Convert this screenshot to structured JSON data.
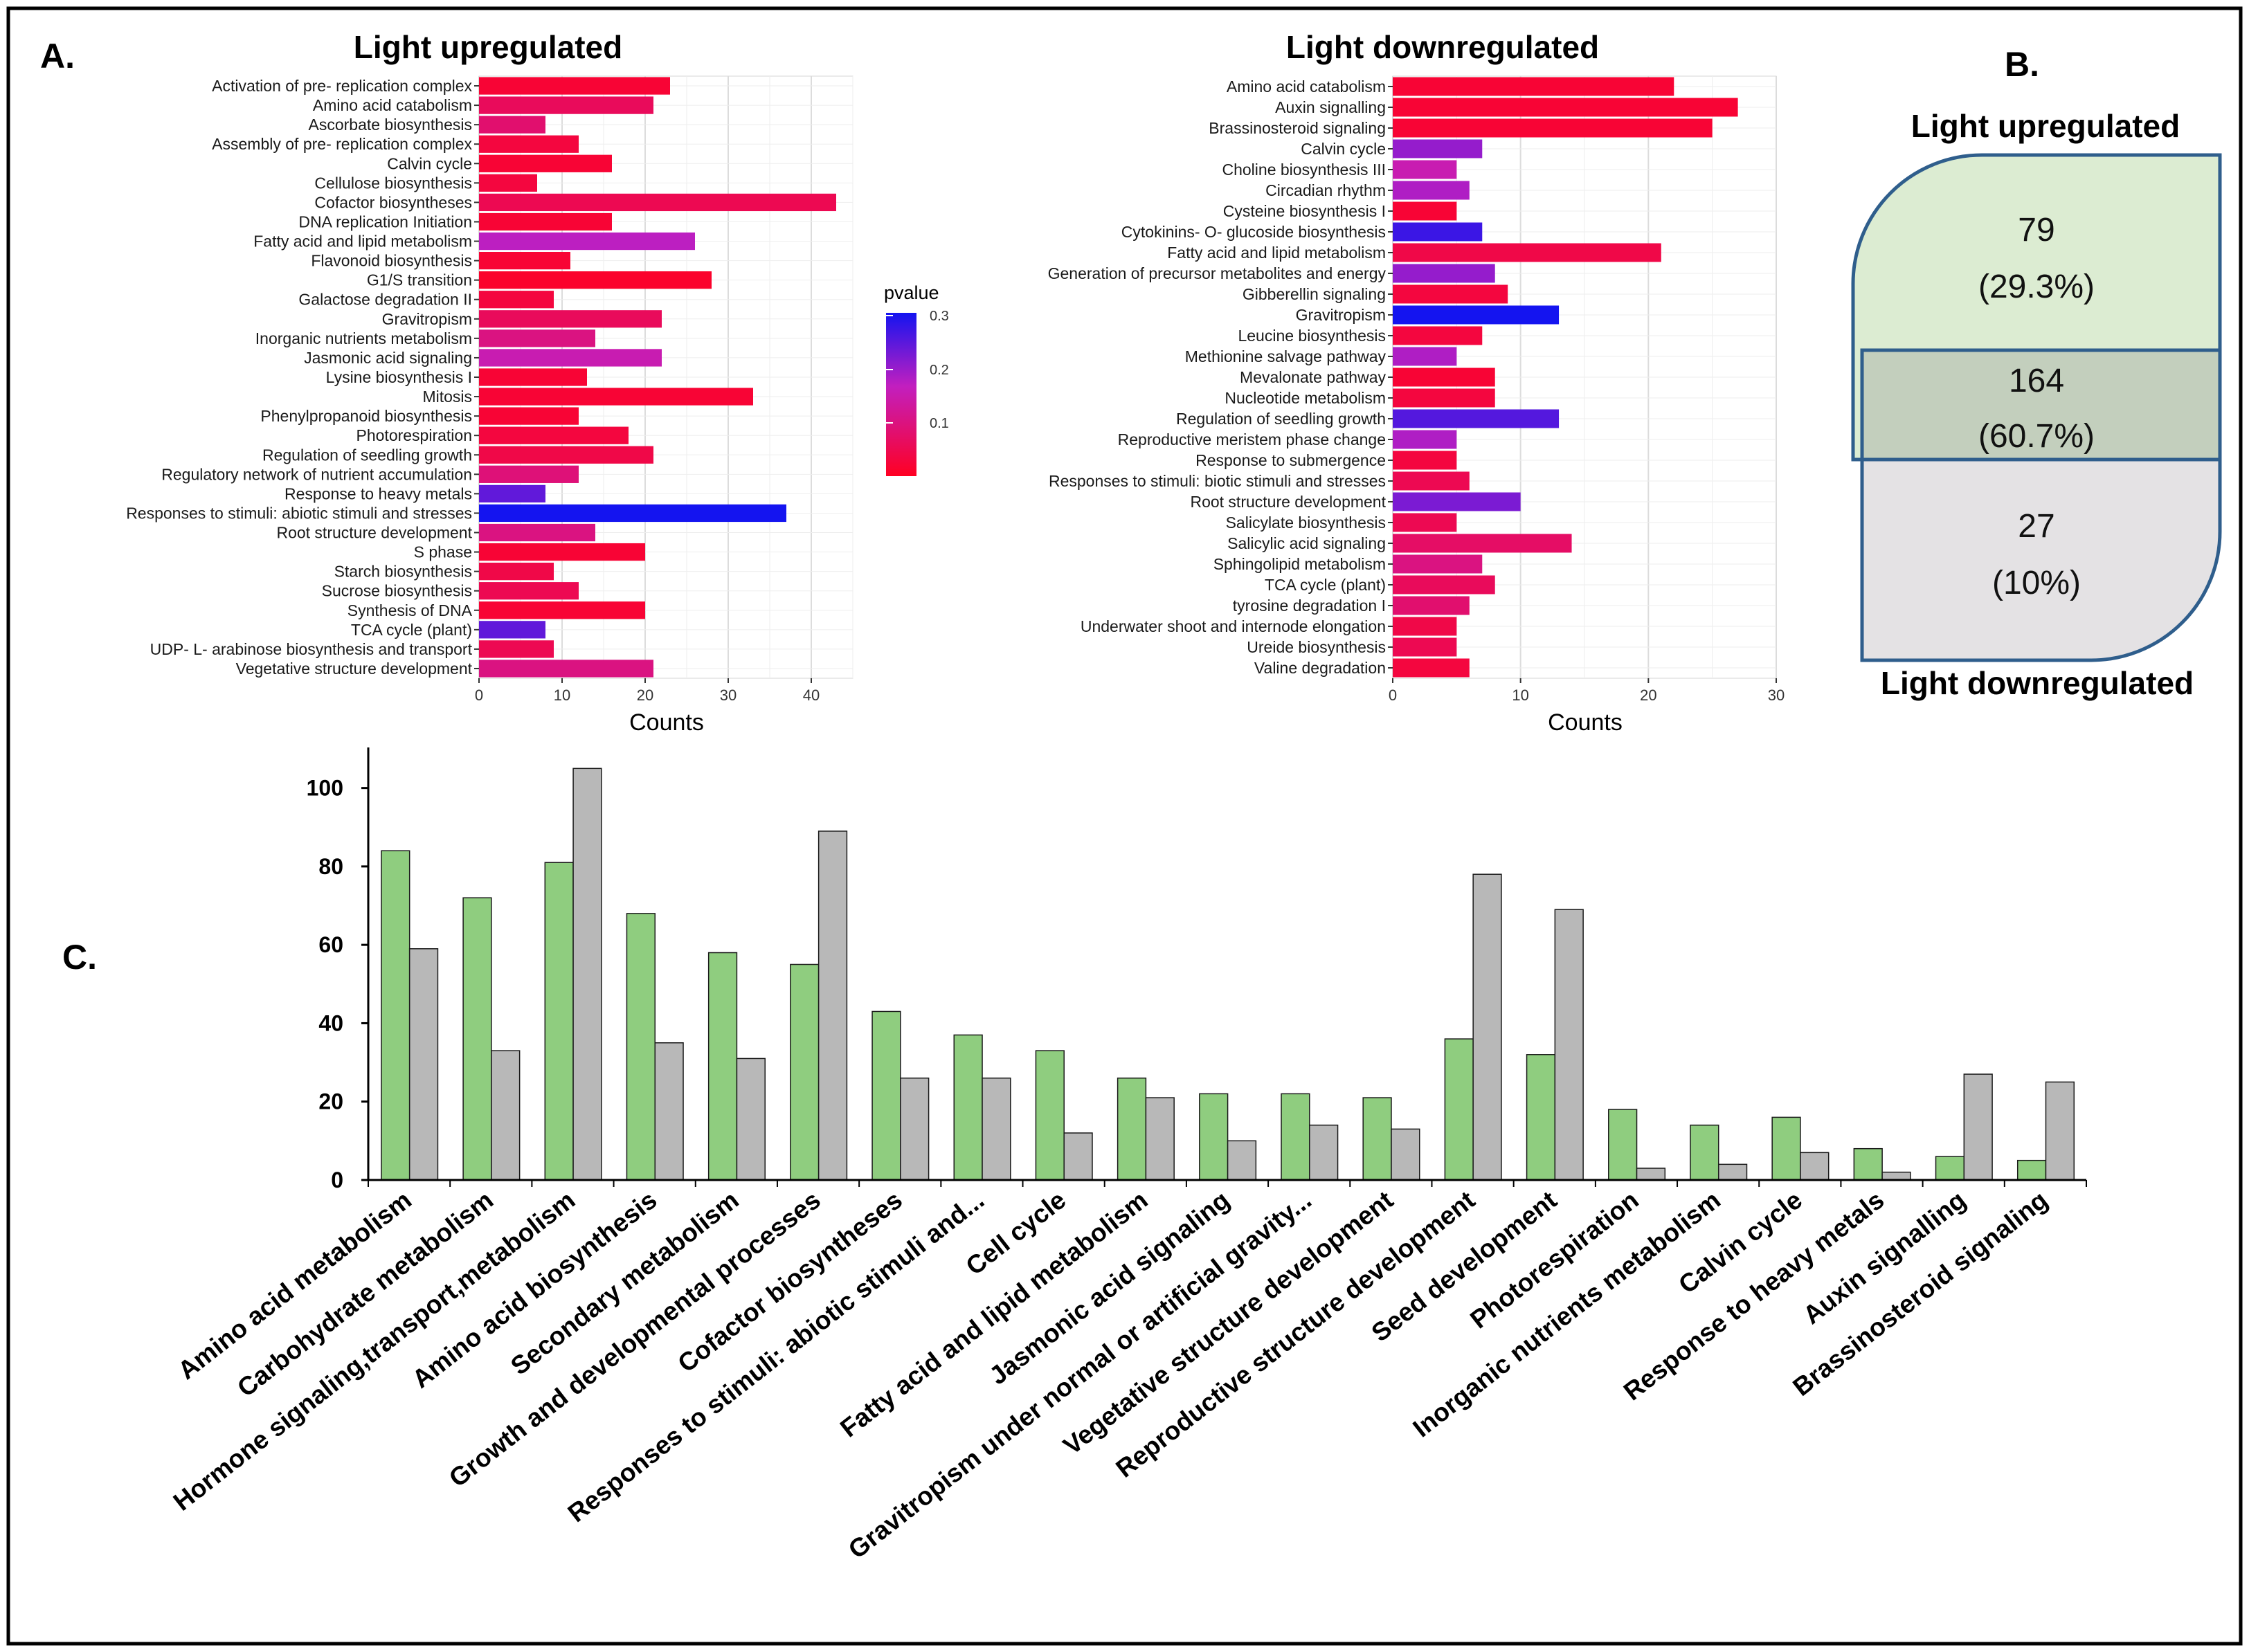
{
  "panels": {
    "a": "A.",
    "b": "B.",
    "c": "C."
  },
  "colors": {
    "low_p": "#ff0022",
    "mid_p": "#c21fbf",
    "high_p": "#1414f0",
    "venn_up": "#dcecd2",
    "venn_down": "#e4e2e4",
    "venn_overlap": "#c3cfbd",
    "venn_stroke": "#2f5e8c",
    "bar_up": "#8fcd7f",
    "bar_down": "#b8b8b8"
  },
  "chart_data": [
    {
      "id": "light-upregulated",
      "type": "bar",
      "orientation": "horizontal",
      "title": "Light upregulated",
      "xlabel": "Counts",
      "xlim": [
        0,
        45
      ],
      "xticks": [
        0,
        10,
        20,
        30,
        40
      ],
      "legend_title": "pvalue",
      "legend_ticks": [
        "0.3",
        "0.2",
        "0.1"
      ],
      "categories": [
        "Activation of pre- replication complex",
        "Amino acid catabolism",
        "Ascorbate biosynthesis",
        "Assembly of pre- replication complex",
        "Calvin cycle",
        "Cellulose biosynthesis",
        "Cofactor biosyntheses",
        "DNA replication Initiation",
        "Fatty acid and lipid metabolism",
        "Flavonoid biosynthesis",
        "G1/S transition",
        "Galactose degradation II",
        "Gravitropism",
        "Inorganic nutrients metabolism",
        "Jasmonic acid signaling",
        "Lysine biosynthesis I",
        "Mitosis",
        "Phenylpropanoid biosynthesis",
        "Photorespiration",
        "Regulation of seedling growth",
        "Regulatory network of nutrient accumulation",
        "Response to heavy metals",
        "Responses to stimuli: abiotic stimuli and stresses",
        "Root structure development",
        "S phase",
        "Starch biosynthesis",
        "Sucrose biosynthesis",
        "Synthesis of DNA",
        "TCA cycle (plant)",
        "UDP- L- arabinose biosynthesis and transport",
        "Vegetative structure development"
      ],
      "values": [
        23,
        21,
        8,
        12,
        16,
        7,
        43,
        16,
        26,
        11,
        28,
        9,
        22,
        14,
        22,
        13,
        33,
        12,
        18,
        21,
        12,
        8,
        37,
        14,
        20,
        9,
        12,
        20,
        8,
        9,
        21
      ],
      "pvalues": [
        0.02,
        0.06,
        0.08,
        0.03,
        0.02,
        0.03,
        0.05,
        0.02,
        0.17,
        0.02,
        0.01,
        0.03,
        0.06,
        0.1,
        0.15,
        0.02,
        0.02,
        0.02,
        0.03,
        0.04,
        0.09,
        0.24,
        0.3,
        0.1,
        0.02,
        0.04,
        0.05,
        0.02,
        0.24,
        0.05,
        0.1
      ]
    },
    {
      "id": "light-downregulated",
      "type": "bar",
      "orientation": "horizontal",
      "title": "Light downregulated",
      "xlabel": "Counts",
      "xlim": [
        0,
        30
      ],
      "xticks": [
        0,
        10,
        20,
        30
      ],
      "categories": [
        "Amino acid catabolism",
        "Auxin signalling",
        "Brassinosteroid signaling",
        "Calvin cycle",
        "Choline biosynthesis III",
        "Circadian rhythm",
        "Cysteine biosynthesis I",
        "Cytokinins- O- glucoside biosynthesis",
        "Fatty acid and lipid metabolism",
        "Generation of precursor metabolites and energy",
        "Gibberellin signaling",
        "Gravitropism",
        "Leucine biosynthesis",
        "Methionine salvage pathway",
        "Mevalonate pathway",
        "Nucleotide metabolism",
        "Regulation of seedling growth",
        "Reproductive meristem phase change",
        "Response to submergence",
        "Responses to stimuli: biotic stimuli and stresses",
        "Root structure development",
        "Salicylate biosynthesis",
        "Salicylic acid signaling",
        "Sphingolipid metabolism",
        "TCA cycle (plant)",
        "tyrosine degradation I",
        "Underwater shoot and internode elongation",
        "Ureide biosynthesis",
        "Valine degradation"
      ],
      "values": [
        22,
        27,
        25,
        7,
        5,
        6,
        5,
        7,
        21,
        8,
        9,
        13,
        7,
        5,
        8,
        8,
        13,
        5,
        5,
        6,
        10,
        5,
        14,
        7,
        8,
        6,
        5,
        5,
        6
      ],
      "pvalues": [
        0.02,
        0.02,
        0.02,
        0.2,
        0.15,
        0.18,
        0.02,
        0.27,
        0.04,
        0.2,
        0.03,
        0.3,
        0.03,
        0.18,
        0.02,
        0.03,
        0.25,
        0.18,
        0.03,
        0.05,
        0.22,
        0.05,
        0.07,
        0.1,
        0.06,
        0.08,
        0.04,
        0.05,
        0.03
      ]
    },
    {
      "id": "venn",
      "type": "venn",
      "sets": [
        "Light upregulated",
        "Light downregulated"
      ],
      "regions": [
        {
          "name": "up-only",
          "count": "79",
          "percent": "(29.3%)"
        },
        {
          "name": "shared",
          "count": "164",
          "percent": "(60.7%)"
        },
        {
          "name": "down-only",
          "count": "27",
          "percent": "(10%)"
        }
      ]
    },
    {
      "id": "category-comparison",
      "type": "bar",
      "orientation": "vertical",
      "ylim": [
        0,
        110
      ],
      "yticks": [
        0,
        20,
        40,
        60,
        80,
        100
      ],
      "categories": [
        "Amino acid metabolism",
        "Carbohydrate metabolism",
        "Hormone signaling,transport,metabolism",
        "Amino acid biosynthesis",
        "Secondary metabolism",
        "Growth and developmental processes",
        "Cofactor biosyntheses",
        "Responses to stimuli: abiotic stimuli and...",
        "Cell cycle",
        "Fatty acid and lipid metabolism",
        "Jasmonic acid signaling",
        "Gravitropism under normal or artificial gravity...",
        "Vegetative structure development",
        "Reproductive structure development",
        "Seed development",
        "Photorespiration",
        "Inorganic nutrients metabolism",
        "Calvin cycle",
        "Response to heavy metals",
        "Auxin signalling",
        "Brassinosteroid signaling"
      ],
      "series": [
        {
          "name": "Light upregulated",
          "values": [
            84,
            72,
            81,
            68,
            58,
            55,
            43,
            37,
            33,
            26,
            22,
            22,
            21,
            36,
            32,
            18,
            14,
            16,
            8,
            6,
            5
          ]
        },
        {
          "name": "Light downregulated",
          "values": [
            59,
            33,
            105,
            35,
            31,
            89,
            26,
            26,
            12,
            21,
            10,
            14,
            13,
            78,
            69,
            3,
            4,
            7,
            2,
            27,
            25
          ]
        }
      ]
    }
  ]
}
